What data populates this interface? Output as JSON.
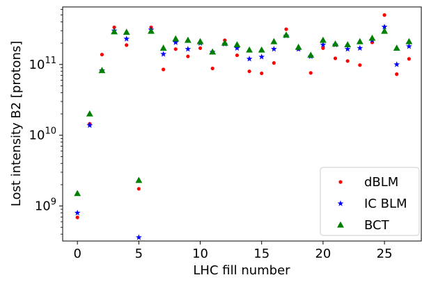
{
  "chart_data": {
    "type": "scatter",
    "xlabel": "LHC fill number",
    "ylabel": "Lost intensity B2 [protons]",
    "yscale": "log",
    "xlim": [
      -1.2,
      28.0
    ],
    "ylim": [
      320000000.0,
      650000000000.0
    ],
    "xticks": [
      0,
      5,
      10,
      15,
      20,
      25
    ],
    "xtick_labels": [
      "0",
      "5",
      "10",
      "15",
      "20",
      "25"
    ],
    "yticks": [
      1000000000.0,
      10000000000.0,
      100000000000.0
    ],
    "ytick_base": "10",
    "ytick_exponents": [
      "9",
      "10",
      "11"
    ],
    "grid": false,
    "legend_position": "lower-right",
    "series": [
      {
        "name": "dBLM",
        "marker": "circle",
        "color": "#ff0000",
        "x": [
          0,
          1,
          2,
          3,
          4,
          5,
          6,
          7,
          8,
          9,
          10,
          11,
          12,
          13,
          14,
          15,
          16,
          17,
          18,
          19,
          20,
          21,
          22,
          23,
          24,
          25,
          26,
          27
        ],
        "y": [
          690000000.0,
          14500000000.0,
          138000000000.0,
          335000000000.0,
          188000000000.0,
          1750000000.0,
          335000000000.0,
          85000000000.0,
          165000000000.0,
          130000000000.0,
          170000000000.0,
          88000000000.0,
          220000000000.0,
          135000000000.0,
          80000000000.0,
          75000000000.0,
          105000000000.0,
          315000000000.0,
          165000000000.0,
          76000000000.0,
          170000000000.0,
          122000000000.0,
          112000000000.0,
          98000000000.0,
          205000000000.0,
          500000000000.0,
          73000000000.0,
          120000000000.0
        ]
      },
      {
        "name": "IC BLM",
        "marker": "star",
        "color": "#0000ff",
        "x": [
          0,
          1,
          2,
          3,
          4,
          5,
          6,
          7,
          8,
          9,
          10,
          11,
          12,
          13,
          14,
          15,
          16,
          17,
          18,
          19,
          20,
          21,
          22,
          23,
          24,
          25,
          26,
          27
        ],
        "y": [
          800000000.0,
          13800000000.0,
          82000000000.0,
          300000000000.0,
          230000000000.0,
          360000000.0,
          310000000000.0,
          140000000000.0,
          205000000000.0,
          165000000000.0,
          200000000000.0,
          150000000000.0,
          195000000000.0,
          170000000000.0,
          120000000000.0,
          128000000000.0,
          165000000000.0,
          255000000000.0,
          165000000000.0,
          130000000000.0,
          190000000000.0,
          190000000000.0,
          165000000000.0,
          170000000000.0,
          220000000000.0,
          340000000000.0,
          100000000000.0,
          180000000000.0
        ]
      },
      {
        "name": "BCT",
        "marker": "triangle",
        "color": "#008000",
        "x": [
          0,
          1,
          2,
          3,
          4,
          5,
          6,
          7,
          8,
          9,
          10,
          11,
          12,
          13,
          14,
          15,
          16,
          17,
          18,
          19,
          20,
          21,
          22,
          23,
          24,
          25,
          26,
          27
        ],
        "y": [
          1500000000.0,
          20000000000.0,
          82000000000.0,
          290000000000.0,
          285000000000.0,
          2300000000.0,
          295000000000.0,
          170000000000.0,
          230000000000.0,
          220000000000.0,
          210000000000.0,
          150000000000.0,
          200000000000.0,
          190000000000.0,
          160000000000.0,
          160000000000.0,
          210000000000.0,
          260000000000.0,
          175000000000.0,
          135000000000.0,
          220000000000.0,
          195000000000.0,
          190000000000.0,
          210000000000.0,
          235000000000.0,
          295000000000.0,
          170000000000.0,
          210000000000.0
        ]
      }
    ]
  }
}
